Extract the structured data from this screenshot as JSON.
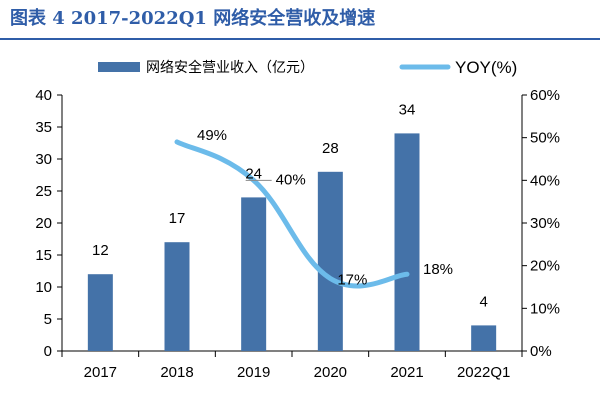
{
  "header": {
    "title": "图表 4 2017-2022Q1 网络安全营收及增速"
  },
  "colors": {
    "bar": "#4472a8",
    "line": "#6cbbea",
    "title": "#2f5da8",
    "axis": "#000000"
  },
  "chart_data": {
    "type": "bar",
    "title": "图表 4 2017-2022Q1 网络安全营收及增速",
    "categories": [
      "2017",
      "2018",
      "2019",
      "2020",
      "2021",
      "2022Q1"
    ],
    "series": [
      {
        "name": "网络安全营业收入（亿元）",
        "type": "bar",
        "axis": "left",
        "values": [
          12,
          17,
          24,
          28,
          34,
          4
        ],
        "labels": [
          "12",
          "17",
          "24",
          "28",
          "34",
          "4"
        ]
      },
      {
        "name": "YOY(%)",
        "type": "line",
        "axis": "right",
        "values": [
          null,
          49,
          40,
          17,
          18,
          null
        ],
        "labels": [
          "",
          "49%",
          "40%",
          "17%",
          "18%",
          ""
        ]
      }
    ],
    "left_axis": {
      "ylim": [
        0,
        40
      ],
      "ticks": [
        "0",
        "5",
        "10",
        "15",
        "20",
        "25",
        "30",
        "35",
        "40"
      ]
    },
    "right_axis": {
      "ylim": [
        0,
        60
      ],
      "ticks": [
        "0%",
        "10%",
        "20%",
        "30%",
        "40%",
        "50%",
        "60%"
      ]
    },
    "legend": {
      "placement": "top"
    },
    "grid": false
  }
}
